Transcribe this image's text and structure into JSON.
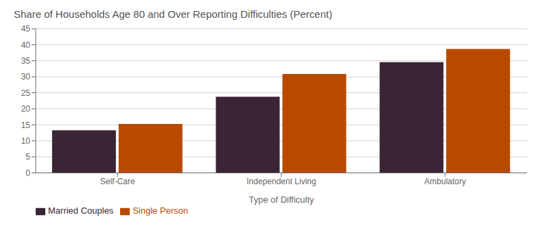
{
  "chart_data": {
    "type": "bar",
    "title": "Share of Households Age 80 and Over Reporting Difficulties (Percent)",
    "xlabel": "Type of Difficulty",
    "categories": [
      "Self-Care",
      "Independent Living",
      "Ambulatory"
    ],
    "series": [
      {
        "name": "Married Couples",
        "color": "#3b2535",
        "values": [
          13.3,
          23.8,
          34.6
        ]
      },
      {
        "name": "Single Person",
        "color": "#b84a00",
        "values": [
          15.3,
          30.9,
          38.7
        ]
      }
    ],
    "ylim": [
      0,
      45
    ],
    "yticks": [
      0,
      5,
      10,
      15,
      20,
      25,
      30,
      35,
      40,
      45
    ],
    "grid": true,
    "legend": "bottom left"
  }
}
